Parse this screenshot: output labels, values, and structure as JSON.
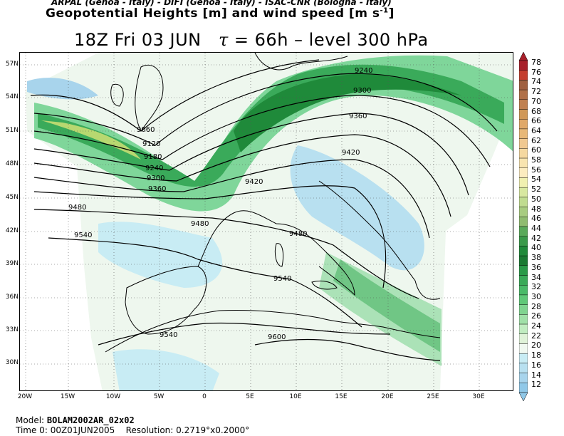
{
  "header": {
    "line1": "ARPAL (Genoa - Italy)  -  DIFI (Genoa - Italy)  -  ISAC-CNR (Bologna - Italy)",
    "line2_main": "Geopotential Heights [m] and wind speed [m s",
    "line2_sup": "-1",
    "line2_end": "]"
  },
  "title": {
    "left": "18Z Fri 03 JUN",
    "tau": "τ",
    "right": "= 66h   –   level 300 hPa"
  },
  "map": {
    "lat_labels": [
      "57N",
      "54N",
      "51N",
      "48N",
      "45N",
      "42N",
      "39N",
      "36N",
      "33N",
      "30N"
    ],
    "lon_labels": [
      "20W",
      "15W",
      "10W",
      "5W",
      "0",
      "5E",
      "10E",
      "15E",
      "20E",
      "25E",
      "30E"
    ],
    "contour_labels": [
      "9240",
      "9300",
      "9360",
      "9420",
      "9060",
      "9120",
      "9180",
      "9240",
      "9300",
      "9360",
      "9420",
      "9480",
      "9540",
      "9480",
      "9480",
      "9540",
      "9540",
      "9600"
    ]
  },
  "colorbar": {
    "labels": [
      "78",
      "76",
      "74",
      "72",
      "70",
      "68",
      "66",
      "64",
      "62",
      "60",
      "58",
      "56",
      "54",
      "52",
      "50",
      "48",
      "46",
      "44",
      "42",
      "40",
      "38",
      "36",
      "34",
      "32",
      "30",
      "28",
      "26",
      "24",
      "22",
      "20",
      "18",
      "16",
      "14",
      "12"
    ],
    "colors": [
      "#a8202a",
      "#c43e2e",
      "#a06040",
      "#b07048",
      "#c08050",
      "#d09858",
      "#e0a868",
      "#e8b878",
      "#f0c890",
      "#f5d8a0",
      "#f8e4b0",
      "#fcecc0",
      "#f0f0b0",
      "#d8e8a0",
      "#c0dc90",
      "#a8cc80",
      "#90bc70",
      "#5aaa5a",
      "#3a9a4a",
      "#208a3a",
      "#1a7a32",
      "#2a9a48",
      "#3aaa58",
      "#4aba68",
      "#60c878",
      "#80d490",
      "#a0e0a8",
      "#c0ecc0",
      "#dff2d8",
      "#f0f8f0",
      "#c8ecf4",
      "#b8e0f0",
      "#a8d4ec",
      "#90c8e8"
    ]
  },
  "footer": {
    "model_label": "Model:",
    "model_value": "BOLAM2002AR_02x02",
    "time_label": "Time 0:",
    "time_value": "00Z01JUN2005",
    "res_label": "Resolution:",
    "res_value": "0.2719°x0.2000°"
  }
}
